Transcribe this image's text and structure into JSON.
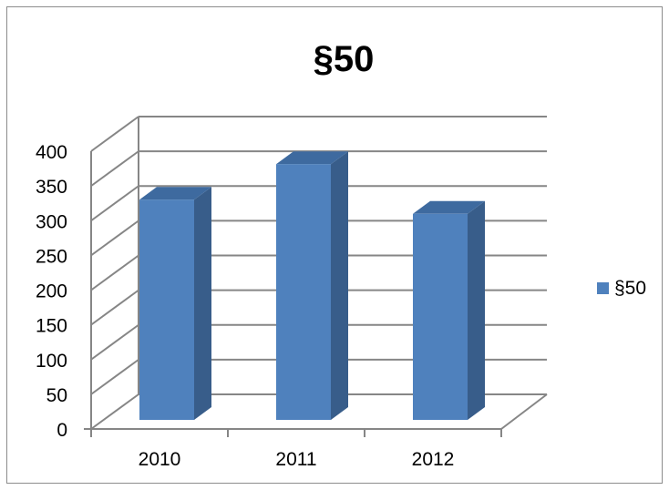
{
  "chart_data": {
    "type": "bar",
    "title": "§50",
    "categories": [
      "2010",
      "2011",
      "2012"
    ],
    "series": [
      {
        "name": "§50",
        "values": [
          310,
          360,
          290
        ]
      }
    ],
    "ylim": [
      0,
      400
    ],
    "yticks": [
      "0",
      "50",
      "100",
      "150",
      "200",
      "250",
      "300",
      "350",
      "400"
    ],
    "grid": true,
    "legend": "right",
    "style": "3d-column",
    "colors": {
      "bar_front": "#4f81bd",
      "bar_side": "#385d8a",
      "bar_top": "#3e6a9f",
      "grid": "#868686"
    }
  }
}
